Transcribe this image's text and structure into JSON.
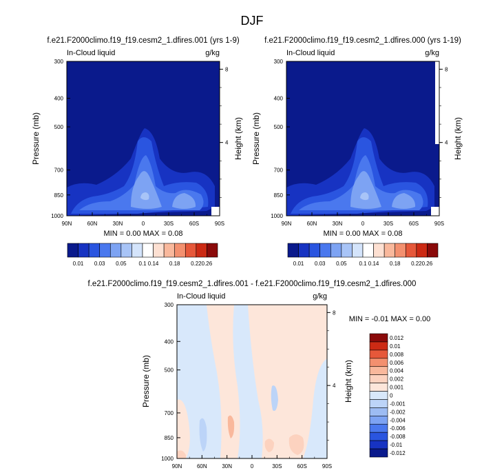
{
  "figure_title": "DJF",
  "panels": [
    {
      "title": "f.e21.F2000climo.f19_f19.cesm2_1.dfires.001 (yrs 1-9)",
      "left_label": "In-Cloud liquid",
      "right_label": "g/kg",
      "ylabel": "Pressure (mb)",
      "y2label": "Height (km)",
      "stats": "MIN =  0.00  MAX =  0.08"
    },
    {
      "title": "f.e21.F2000climo.f19_f19.cesm2_1.dfires.000 (yrs 1-19)",
      "left_label": "In-Cloud liquid",
      "right_label": "g/kg",
      "ylabel": "Pressure (mb)",
      "y2label": "Height (km)",
      "stats": "MIN =  0.00  MAX =  0.08"
    },
    {
      "title": "f.e21.F2000climo.f19_f19.cesm2_1.dfires.001 - f.e21.F2000climo.f19_f19.cesm2_1.dfires.000",
      "left_label": "In-Cloud liquid",
      "right_label": "g/kg",
      "ylabel": "Pressure (mb)",
      "y2label": "Height (km)",
      "stats": "MIN = -0.01  MAX =  0.00"
    }
  ],
  "chart_data": [
    {
      "type": "heatmap",
      "x_ticks": [
        "90N",
        "60N",
        "30N",
        "0",
        "30S",
        "60S",
        "90S"
      ],
      "y_ticks": [
        "300",
        "400",
        "500",
        "700",
        "850",
        "1000"
      ],
      "y_tick_values": [
        300,
        400,
        500,
        700,
        850,
        1000
      ],
      "y2_ticks": [
        "8",
        "4"
      ],
      "y2_tick_values": [
        8,
        4
      ],
      "min": 0.0,
      "max": 0.08,
      "colorbar": {
        "labels": [
          "0.01",
          "0.03",
          "0.05",
          "0.1",
          "0.14",
          "0.18",
          "0.22",
          "0.26"
        ],
        "colors": [
          "#0a1a8c",
          "#1733c2",
          "#2a55e0",
          "#4a78ee",
          "#7da3f3",
          "#a8c4f7",
          "#d4e4fb",
          "#ffffff",
          "#fde0d2",
          "#f9b89c",
          "#f3906f",
          "#e6583a",
          "#cc2a14",
          "#8a0a0a"
        ]
      },
      "structure": "near-zero everywhere (dark blue) with cloud maxima ~0.05-0.08 g/kg at 850-700 mb near the equator and ~45S, extending up to ~500 mb near 0"
    },
    {
      "type": "heatmap",
      "x_ticks": [
        "90N",
        "60N",
        "30N",
        "0",
        "30S",
        "60S",
        "90S"
      ],
      "y_ticks": [
        "300",
        "400",
        "500",
        "700",
        "850",
        "1000"
      ],
      "y_tick_values": [
        300,
        400,
        500,
        700,
        850,
        1000
      ],
      "y2_ticks": [
        "8",
        "4"
      ],
      "y2_tick_values": [
        8,
        4
      ],
      "min": 0.0,
      "max": 0.08,
      "colorbar": {
        "labels": [
          "0.01",
          "0.03",
          "0.05",
          "0.1",
          "0.14",
          "0.18",
          "0.22",
          "0.26"
        ],
        "colors": [
          "#0a1a8c",
          "#1733c2",
          "#2a55e0",
          "#4a78ee",
          "#7da3f3",
          "#a8c4f7",
          "#d4e4fb",
          "#ffffff",
          "#fde0d2",
          "#f9b89c",
          "#f3906f",
          "#e6583a",
          "#cc2a14",
          "#8a0a0a"
        ]
      },
      "structure": "near-identical to the first panel"
    },
    {
      "type": "heatmap",
      "x_ticks": [
        "90N",
        "60N",
        "30N",
        "0",
        "30S",
        "60S",
        "90S"
      ],
      "y_ticks": [
        "300",
        "400",
        "500",
        "700",
        "850",
        "1000"
      ],
      "y_tick_values": [
        300,
        400,
        500,
        700,
        850,
        1000
      ],
      "y2_ticks": [
        "8",
        "4"
      ],
      "y2_tick_values": [
        8,
        4
      ],
      "min": -0.01,
      "max": 0.0,
      "colorbar": {
        "labels": [
          "0.012",
          "0.01",
          "0.008",
          "0.006",
          "0.004",
          "0.002",
          "0.001",
          "0",
          "-0.001",
          "-0.002",
          "-0.004",
          "-0.006",
          "-0.008",
          "-0.01",
          "-0.012"
        ],
        "colors": [
          "#8a0a0a",
          "#cc2a14",
          "#e6583a",
          "#f3906f",
          "#f9b89c",
          "#fcd2bf",
          "#fde6da",
          "#d8e8fb",
          "#bcd4f8",
          "#9dbcf3",
          "#7da3f3",
          "#4a78ee",
          "#2a55e0",
          "#1733c2",
          "#0a1a8c"
        ]
      },
      "structure": "mostly small differences between -0.001 and 0.001; light red bands near 30N and 40S at low levels, light blue at high levels and near the poles"
    }
  ]
}
